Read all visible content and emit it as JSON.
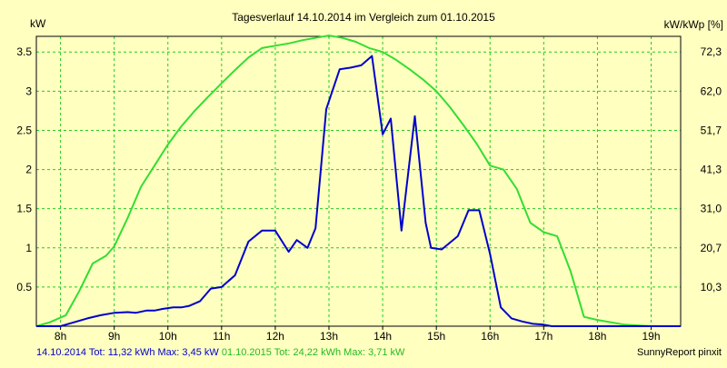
{
  "chart_data": {
    "type": "line",
    "title": "Tagesverlauf 14.10.2014 im Vergleich zum 01.10.2015",
    "ylabel": "kW",
    "y2label": "kW/kWp [%]",
    "xlim": [
      7.55,
      19.55
    ],
    "ylim": [
      0,
      3.7
    ],
    "x_ticks": [
      8,
      9,
      10,
      11,
      12,
      13,
      14,
      15,
      16,
      17,
      18,
      19
    ],
    "x_tick_labels": [
      "8h",
      "9h",
      "10h",
      "11h",
      "12h",
      "13h",
      "14h",
      "15h",
      "16h",
      "17h",
      "18h",
      "19h"
    ],
    "y_ticks": [
      0.5,
      1,
      1.5,
      2,
      2.5,
      3,
      3.5
    ],
    "y_tick_labels": [
      "0.5",
      "1",
      "1.5",
      "2",
      "2.5",
      "3",
      "3.5"
    ],
    "y2_ticks": [
      0.5,
      1,
      1.5,
      2,
      2.5,
      3,
      3.5
    ],
    "y2_tick_labels": [
      "10,3",
      "20,7",
      "31,0",
      "41,3",
      "51,7",
      "62,0",
      "72,3"
    ],
    "grid": true,
    "series": [
      {
        "name": "14.10.2014",
        "color": "#0000cc",
        "x": [
          7.55,
          7.75,
          8.0,
          8.25,
          8.5,
          8.75,
          9.0,
          9.25,
          9.4,
          9.6,
          9.75,
          9.9,
          10.1,
          10.25,
          10.4,
          10.6,
          10.8,
          11.0,
          11.25,
          11.5,
          11.75,
          12.0,
          12.25,
          12.4,
          12.6,
          12.75,
          12.95,
          13.2,
          13.4,
          13.6,
          13.8,
          14.0,
          14.15,
          14.35,
          14.6,
          14.8,
          14.9,
          15.1,
          15.4,
          15.6,
          15.8,
          16.0,
          16.2,
          16.4,
          16.6,
          16.8,
          17.0,
          17.15,
          17.35,
          17.6,
          17.8,
          18.0,
          18.2,
          18.4,
          18.6,
          18.8,
          19.0,
          19.2,
          19.55
        ],
        "values": [
          0,
          0,
          0,
          0.05,
          0.1,
          0.14,
          0.17,
          0.18,
          0.17,
          0.2,
          0.2,
          0.22,
          0.24,
          0.24,
          0.26,
          0.32,
          0.48,
          0.5,
          0.65,
          1.08,
          1.22,
          1.22,
          0.95,
          1.1,
          1.0,
          1.25,
          2.77,
          3.28,
          3.3,
          3.33,
          3.45,
          2.45,
          2.65,
          1.22,
          2.68,
          1.32,
          1.0,
          0.98,
          1.15,
          1.48,
          1.48,
          0.92,
          0.24,
          0.1,
          0.06,
          0.03,
          0.02,
          0.0,
          0.0,
          0.0,
          0.0,
          0.0,
          0.0,
          0.0,
          0.0,
          0.0,
          0.0,
          0.0,
          0.0
        ]
      },
      {
        "name": "01.10.2015",
        "color": "#33dd33",
        "x": [
          7.55,
          7.8,
          8.1,
          8.35,
          8.6,
          8.85,
          9.0,
          9.25,
          9.5,
          9.75,
          10.0,
          10.25,
          10.5,
          10.75,
          11.0,
          11.25,
          11.5,
          11.75,
          12.0,
          12.25,
          12.5,
          12.75,
          13.0,
          13.25,
          13.5,
          13.75,
          14.0,
          14.25,
          14.5,
          14.75,
          15.0,
          15.25,
          15.5,
          15.75,
          16.0,
          16.25,
          16.5,
          16.75,
          17.0,
          17.25,
          17.5,
          17.75,
          18.0,
          18.25,
          18.5,
          18.75,
          19.0,
          19.25,
          19.55
        ],
        "values": [
          0,
          0.05,
          0.14,
          0.45,
          0.8,
          0.9,
          1.02,
          1.38,
          1.78,
          2.05,
          2.32,
          2.55,
          2.75,
          2.93,
          3.1,
          3.27,
          3.43,
          3.55,
          3.58,
          3.61,
          3.65,
          3.68,
          3.71,
          3.68,
          3.63,
          3.55,
          3.5,
          3.4,
          3.28,
          3.15,
          3.0,
          2.8,
          2.57,
          2.33,
          2.05,
          2.0,
          1.75,
          1.32,
          1.2,
          1.15,
          0.7,
          0.12,
          0.08,
          0.05,
          0.02,
          0.01,
          0.0,
          0.0,
          0.0
        ]
      }
    ],
    "footer_left_blue": "14.10.2014 Tot: 11,32 kWh Max: 3,45 kW",
    "footer_left_green": " 01.10.2015 Tot: 24,22 kWh Max: 3,71 kW",
    "footer_right": "SunnyReport pinxit"
  }
}
